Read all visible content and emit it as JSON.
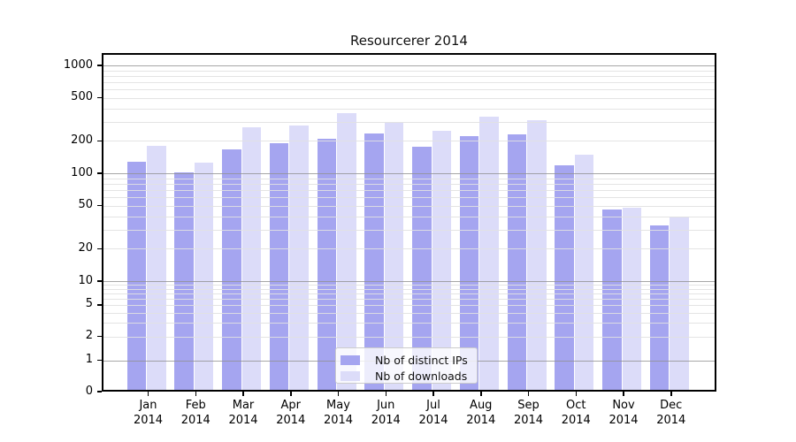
{
  "chart_data": {
    "type": "bar",
    "title": "Resourcerer 2014",
    "categories": [
      "Jan 2014",
      "Feb 2014",
      "Mar 2014",
      "Apr 2014",
      "May 2014",
      "Jun 2014",
      "Jul 2014",
      "Aug 2014",
      "Sep 2014",
      "Oct 2014",
      "Nov 2014",
      "Dec 2014"
    ],
    "months": [
      "Jan",
      "Feb",
      "Mar",
      "Apr",
      "May",
      "Jun",
      "Jul",
      "Aug",
      "Sep",
      "Oct",
      "Nov",
      "Dec"
    ],
    "year": "2014",
    "series": [
      {
        "name": "Nb of distinct IPs",
        "color": "#a5a5f0",
        "values": [
          128,
          102,
          168,
          190,
          210,
          235,
          176,
          220,
          228,
          118,
          46,
          33
        ]
      },
      {
        "name": "Nb of downloads",
        "color": "#dcdcf9",
        "values": [
          180,
          126,
          265,
          278,
          360,
          300,
          248,
          335,
          310,
          150,
          48,
          40
        ]
      }
    ],
    "yscale": "symlog",
    "y_ticks": [
      0,
      1,
      2,
      5,
      10,
      20,
      50,
      100,
      200,
      500,
      1000
    ],
    "ylim": [
      0,
      1200
    ],
    "grid": true,
    "legend_position": "lower center"
  },
  "colors": {
    "distinct_ips": "#a5a5f0",
    "downloads": "#dcdcf9",
    "grid_minor": "#e1e1e1",
    "grid_major": "#919191",
    "spine": "#000000",
    "background": "#ffffff"
  }
}
